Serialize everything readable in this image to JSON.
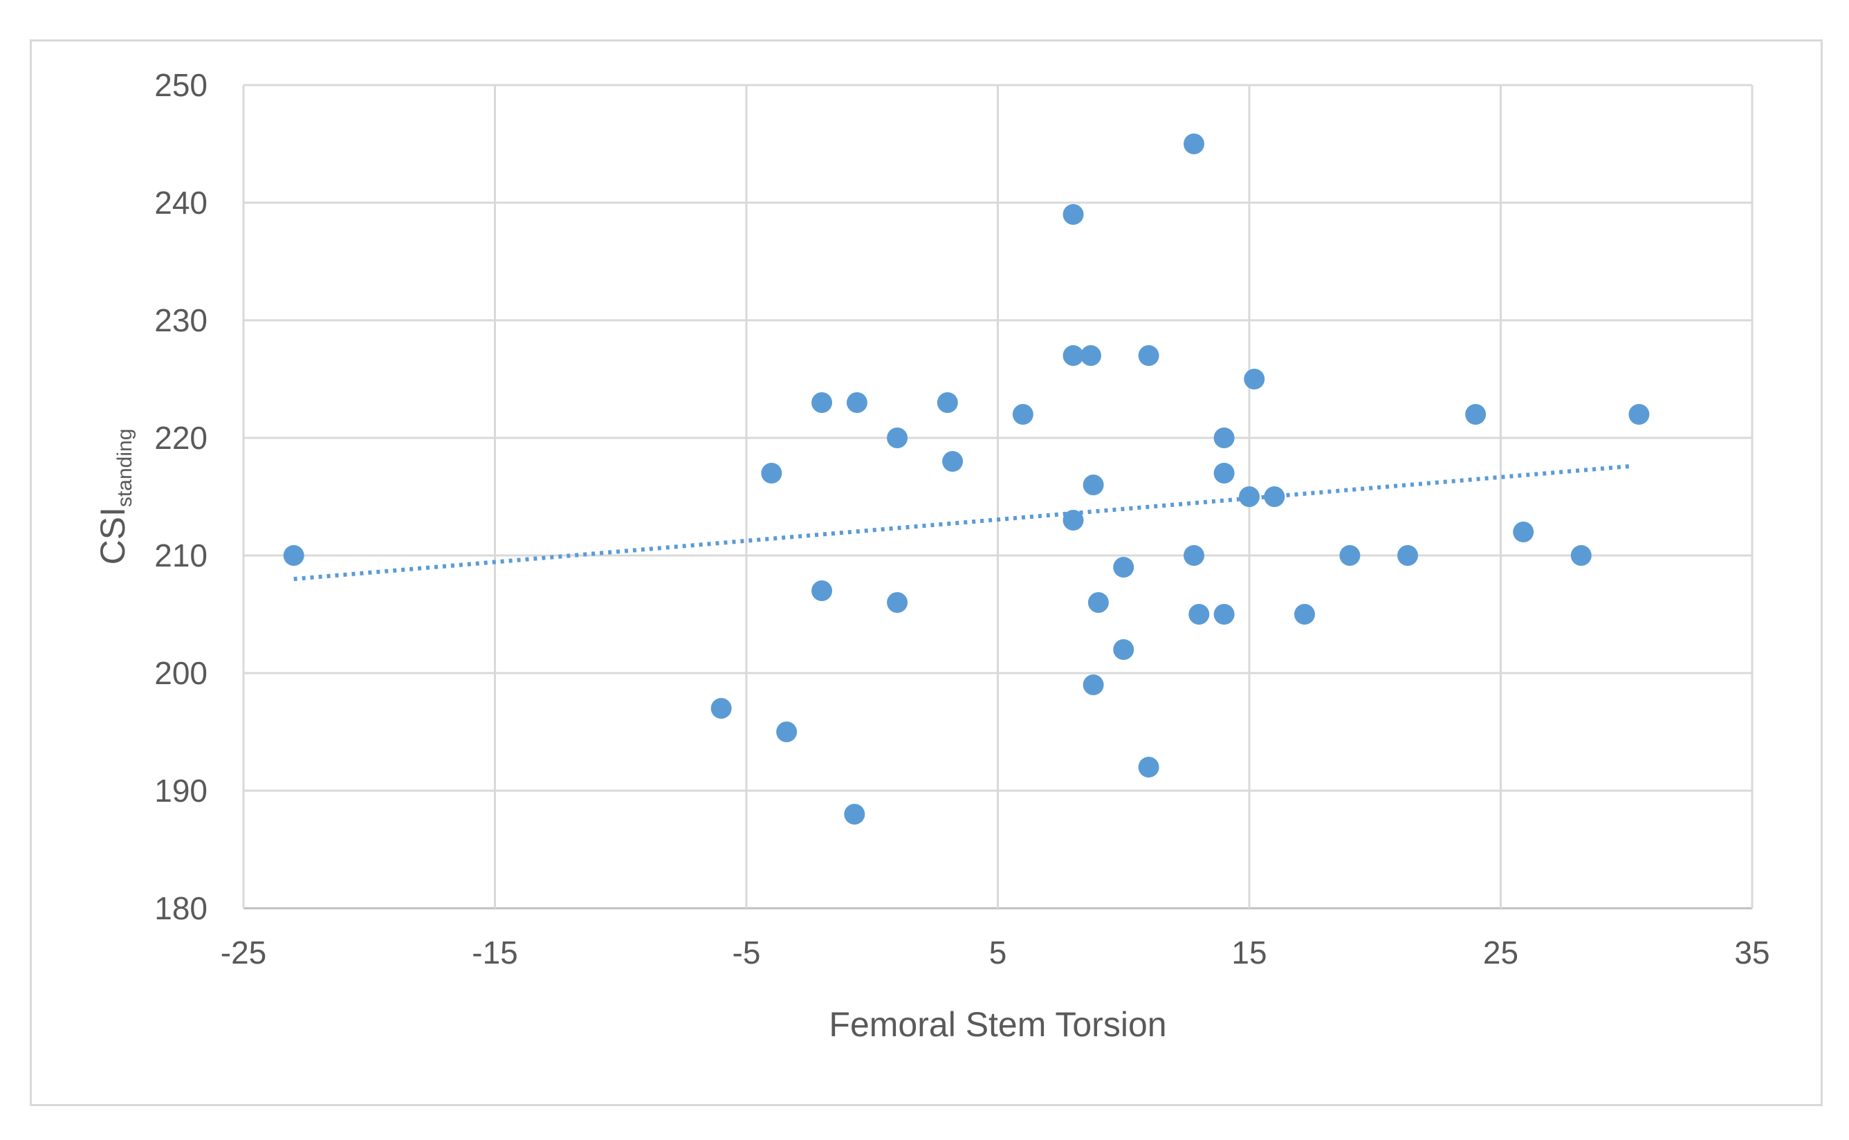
{
  "chart_data": {
    "type": "scatter",
    "xlabel": "Femoral Stem Torsion",
    "ylabel": {
      "main": "CSI",
      "subscript": "standing"
    },
    "xlim": [
      -25,
      35
    ],
    "ylim": [
      180,
      250
    ],
    "x_ticks": [
      -25,
      -15,
      -5,
      5,
      15,
      25,
      35
    ],
    "y_ticks": [
      180,
      190,
      200,
      210,
      220,
      230,
      240,
      250
    ],
    "grid": true,
    "legend": "none",
    "point_color": "#5b9bd5",
    "trendline": {
      "style": "dotted linear",
      "color": "#5b9bd5",
      "from": {
        "x": -23,
        "y": 208
      },
      "to": {
        "x": 30.2,
        "y": 217.6
      }
    },
    "series": [
      {
        "points": [
          {
            "x": -23,
            "y": 210
          },
          {
            "x": -6,
            "y": 197
          },
          {
            "x": -4,
            "y": 217
          },
          {
            "x": -3.4,
            "y": 195
          },
          {
            "x": -2,
            "y": 223
          },
          {
            "x": -2,
            "y": 207
          },
          {
            "x": -0.6,
            "y": 223
          },
          {
            "x": -0.7,
            "y": 188
          },
          {
            "x": 1,
            "y": 220
          },
          {
            "x": 1,
            "y": 206
          },
          {
            "x": 3,
            "y": 223
          },
          {
            "x": 3.2,
            "y": 218
          },
          {
            "x": 6,
            "y": 222
          },
          {
            "x": 8,
            "y": 239
          },
          {
            "x": 8,
            "y": 227
          },
          {
            "x": 8.7,
            "y": 227
          },
          {
            "x": 8,
            "y": 213
          },
          {
            "x": 8.8,
            "y": 216
          },
          {
            "x": 9,
            "y": 206
          },
          {
            "x": 8.8,
            "y": 199
          },
          {
            "x": 10,
            "y": 209
          },
          {
            "x": 10,
            "y": 202
          },
          {
            "x": 11,
            "y": 227
          },
          {
            "x": 11,
            "y": 192
          },
          {
            "x": 12.8,
            "y": 245
          },
          {
            "x": 12.8,
            "y": 210
          },
          {
            "x": 13,
            "y": 205
          },
          {
            "x": 14,
            "y": 220
          },
          {
            "x": 14,
            "y": 217
          },
          {
            "x": 14,
            "y": 205
          },
          {
            "x": 15,
            "y": 215
          },
          {
            "x": 15.2,
            "y": 225
          },
          {
            "x": 16,
            "y": 215
          },
          {
            "x": 17.2,
            "y": 205
          },
          {
            "x": 19,
            "y": 210
          },
          {
            "x": 21.3,
            "y": 210
          },
          {
            "x": 24,
            "y": 222
          },
          {
            "x": 25.9,
            "y": 212
          },
          {
            "x": 28.2,
            "y": 210
          },
          {
            "x": 30.5,
            "y": 222
          }
        ]
      }
    ]
  }
}
